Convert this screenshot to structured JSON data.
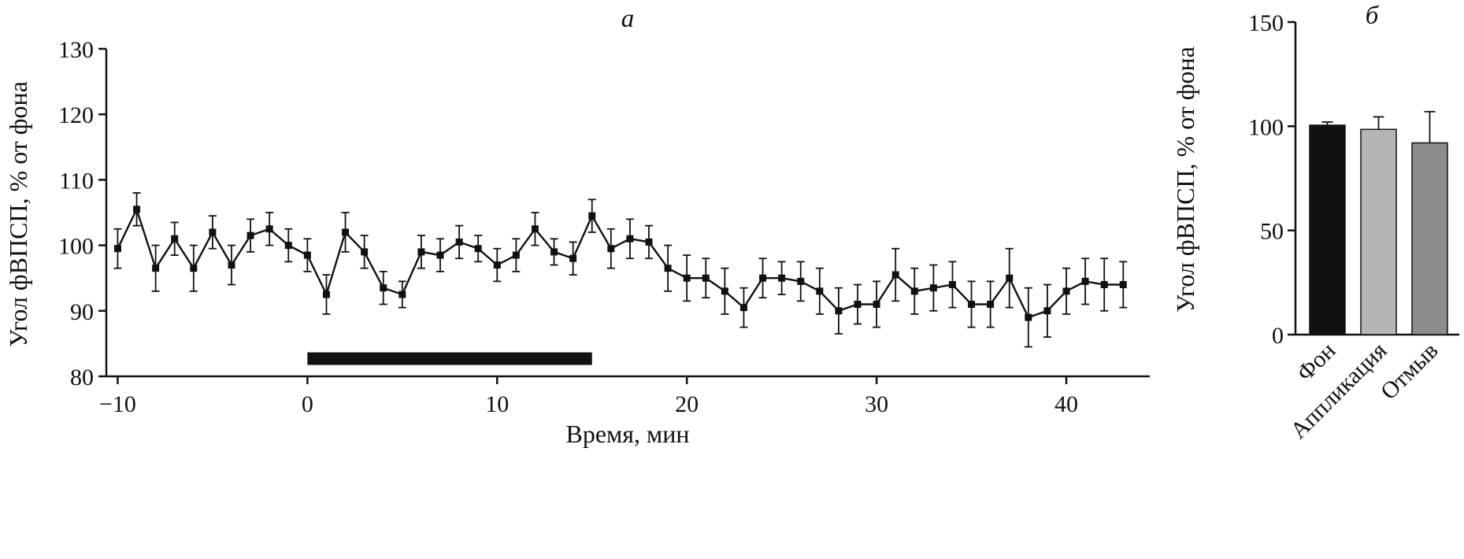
{
  "figure": {
    "background": "#ffffff",
    "ink_color": "#111111"
  },
  "chart_data": [
    {
      "type": "line",
      "panel": "a",
      "title": "а",
      "xlabel": "Время, мин",
      "ylabel": "Угол фВПСП, % от фона",
      "xlim": [
        -10.6,
        44.4
      ],
      "ylim": [
        80,
        130
      ],
      "xticks": [
        -10,
        0,
        10,
        20,
        30,
        40
      ],
      "yticks": [
        80,
        90,
        100,
        110,
        120,
        130
      ],
      "grid": false,
      "marker": "filled-square",
      "line_color": "#111111",
      "error_bars": "caps",
      "application_bar": {
        "x_start": 0,
        "x_end": 15,
        "y_center": 82.7,
        "color": "#111111"
      },
      "x": [
        -10,
        -9,
        -8,
        -7,
        -6,
        -5,
        -4,
        -3,
        -2,
        -1,
        0,
        1,
        2,
        3,
        4,
        5,
        6,
        7,
        8,
        9,
        10,
        11,
        12,
        13,
        14,
        15,
        16,
        17,
        18,
        19,
        20,
        21,
        22,
        23,
        24,
        25,
        26,
        27,
        28,
        29,
        30,
        31,
        32,
        33,
        34,
        35,
        36,
        37,
        38,
        39,
        40,
        41,
        42,
        43
      ],
      "y": [
        99.5,
        105.5,
        96.5,
        101,
        96.5,
        102,
        97,
        101.5,
        102.5,
        100,
        98.5,
        92.5,
        102,
        99,
        93.5,
        92.5,
        99,
        98.5,
        100.5,
        99.5,
        97,
        98.5,
        102.5,
        99,
        98,
        104.5,
        99.5,
        101,
        100.5,
        96.5,
        95,
        95,
        93,
        90.5,
        95,
        95,
        94.5,
        93,
        90,
        91,
        91,
        95.5,
        93,
        93.5,
        94,
        91,
        91,
        95,
        89,
        90,
        93,
        94.5,
        94,
        94
      ],
      "yerr": [
        3,
        2.5,
        3.5,
        2.5,
        3.5,
        2.5,
        3,
        2.5,
        2.5,
        2.5,
        2.5,
        3,
        3,
        2.5,
        2.5,
        2,
        2.5,
        2.5,
        2.5,
        2,
        2.5,
        2.5,
        2.5,
        2,
        2.5,
        2.5,
        3,
        3,
        2.5,
        3.5,
        3.5,
        3,
        3.5,
        3,
        3,
        2.5,
        3,
        3.5,
        3.5,
        3,
        3.5,
        4,
        3.5,
        3.5,
        3.5,
        3.5,
        3.5,
        4.5,
        4.5,
        4,
        3.5,
        3.5,
        4,
        3.5
      ]
    },
    {
      "type": "bar",
      "panel": "b",
      "title": "б",
      "xlabel": "",
      "ylabel": "Угол фВПСП, % от фона",
      "ylim": [
        0,
        150
      ],
      "yticks": [
        0,
        50,
        100,
        150
      ],
      "grid": false,
      "categories": [
        "Фон",
        "Аппликация",
        "Отмыв"
      ],
      "values": [
        100.5,
        98.5,
        92
      ],
      "errors": [
        1.5,
        6,
        15
      ],
      "bar_colors": [
        "#111111",
        "#b5b5b5",
        "#8c8c8c"
      ],
      "bar_edge_color": "#111111"
    }
  ]
}
